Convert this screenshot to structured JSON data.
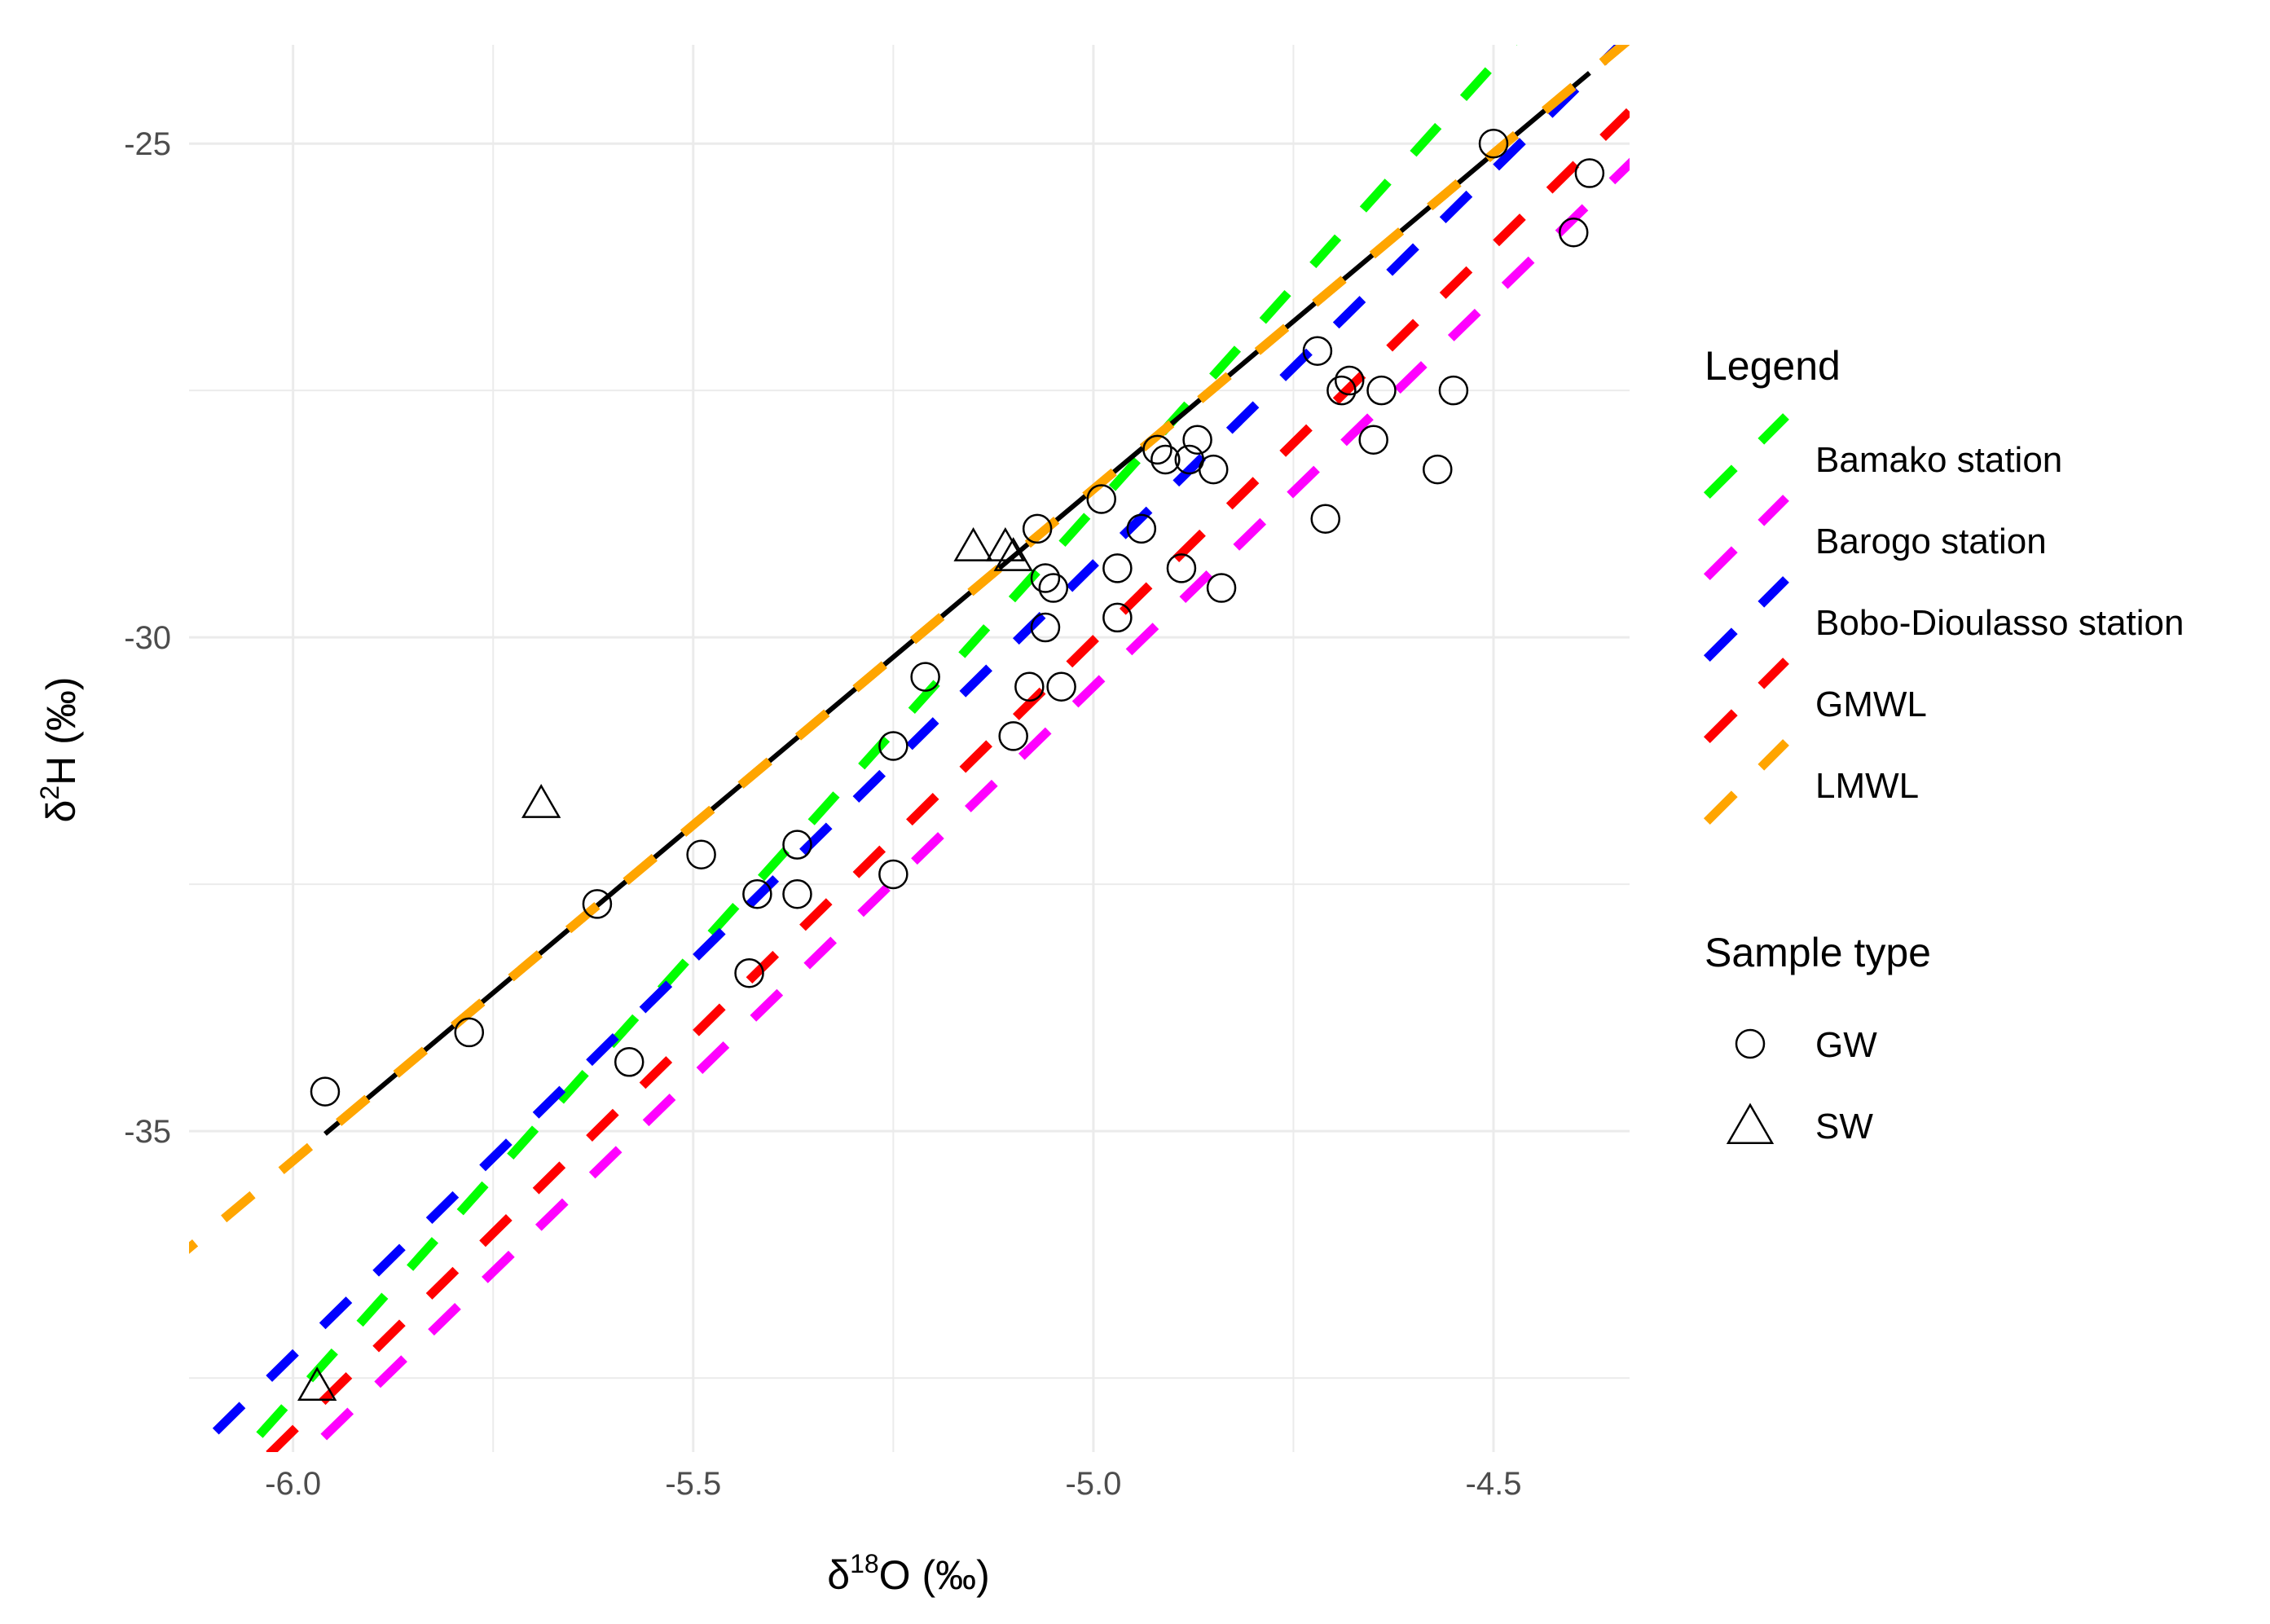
{
  "chart_data": {
    "type": "scatter",
    "title": "",
    "xlabel": {
      "prefix": "δ",
      "superscript": "18",
      "main": "O (‰)"
    },
    "ylabel": {
      "prefix": "δ",
      "superscript": "2",
      "main": "H (‰)"
    },
    "xlim": [
      -6.13,
      -4.33
    ],
    "ylim": [
      -38.25,
      -24.0
    ],
    "xticks": [
      {
        "value": -6.0,
        "label": "-6.0"
      },
      {
        "value": -5.5,
        "label": "-5.5"
      },
      {
        "value": -5.0,
        "label": "-5.0"
      },
      {
        "value": -4.5,
        "label": "-4.5"
      }
    ],
    "yticks": [
      {
        "value": -25,
        "label": "-25"
      },
      {
        "value": -30,
        "label": "-30"
      },
      {
        "value": -35,
        "label": "-35"
      }
    ],
    "grid": true,
    "lines": [
      {
        "name": "Bamako station",
        "slope": 9.0,
        "intercept": 16.3,
        "color": "#00ff00",
        "style": "dashed"
      },
      {
        "name": "Barogo station",
        "slope": 7.9,
        "intercept": 9.0,
        "color": "#ff00ff",
        "style": "dashed"
      },
      {
        "name": "Bobo-Dioulasso station",
        "slope": 8.0,
        "intercept": 10.7,
        "color": "#0000ff",
        "style": "dashed",
        "offset": -4
      },
      {
        "name": "GMWL",
        "slope": 8.0,
        "intercept": 10.0,
        "color": "#ff0000",
        "style": "dashed",
        "offset": 4
      },
      {
        "name": "LMWL",
        "slope": 6.8,
        "intercept": 5.5,
        "color": "#ffa500",
        "style": "dashed"
      }
    ],
    "fit_line": {
      "slope": 6.8,
      "intercept": 5.5,
      "x_range": [
        -5.96,
        -4.38
      ],
      "color": "#000000"
    },
    "series": [
      {
        "name": "GW",
        "marker": "circle",
        "points": [
          [
            -5.96,
            -34.6
          ],
          [
            -5.78,
            -34.0
          ],
          [
            -5.62,
            -32.7
          ],
          [
            -5.58,
            -34.3
          ],
          [
            -5.49,
            -32.2
          ],
          [
            -5.43,
            -33.4
          ],
          [
            -5.42,
            -32.6
          ],
          [
            -5.37,
            -32.1
          ],
          [
            -5.37,
            -32.6
          ],
          [
            -5.25,
            -31.1
          ],
          [
            -5.25,
            -32.4
          ],
          [
            -5.21,
            -30.4
          ],
          [
            -5.1,
            -31.0
          ],
          [
            -5.08,
            -30.5
          ],
          [
            -5.07,
            -28.9
          ],
          [
            -5.06,
            -29.4
          ],
          [
            -5.06,
            -29.9
          ],
          [
            -5.04,
            -30.5
          ],
          [
            -5.05,
            -29.5
          ],
          [
            -4.99,
            -28.6
          ],
          [
            -4.97,
            -29.3
          ],
          [
            -4.97,
            -29.8
          ],
          [
            -4.94,
            -28.9
          ],
          [
            -4.92,
            -28.1
          ],
          [
            -4.91,
            -28.2
          ],
          [
            -4.89,
            -29.3
          ],
          [
            -4.88,
            -28.2
          ],
          [
            -4.87,
            -28.0
          ],
          [
            -4.85,
            -28.3
          ],
          [
            -4.84,
            -29.5
          ],
          [
            -4.72,
            -27.1
          ],
          [
            -4.71,
            -28.8
          ],
          [
            -4.69,
            -27.5
          ],
          [
            -4.68,
            -27.4
          ],
          [
            -4.65,
            -28.0
          ],
          [
            -4.64,
            -27.5
          ],
          [
            -4.57,
            -28.3
          ],
          [
            -4.55,
            -27.5
          ],
          [
            -4.5,
            -25.0
          ],
          [
            -4.4,
            -25.9
          ],
          [
            -4.38,
            -25.3
          ]
        ]
      },
      {
        "name": "SW",
        "marker": "triangle",
        "points": [
          [
            -5.69,
            -31.7
          ],
          [
            -5.15,
            -29.1
          ],
          [
            -5.11,
            -29.1
          ],
          [
            -5.1,
            -29.2
          ],
          [
            -5.97,
            -37.6
          ]
        ]
      }
    ],
    "legend": {
      "placement": "right",
      "title": "Legend",
      "entries": [
        "Bamako station",
        "Barogo station",
        "Bobo-Dioulasso station",
        "GMWL",
        "LMWL"
      ],
      "shape_title": "Sample type",
      "shape_entries": [
        "GW",
        "SW"
      ]
    }
  }
}
